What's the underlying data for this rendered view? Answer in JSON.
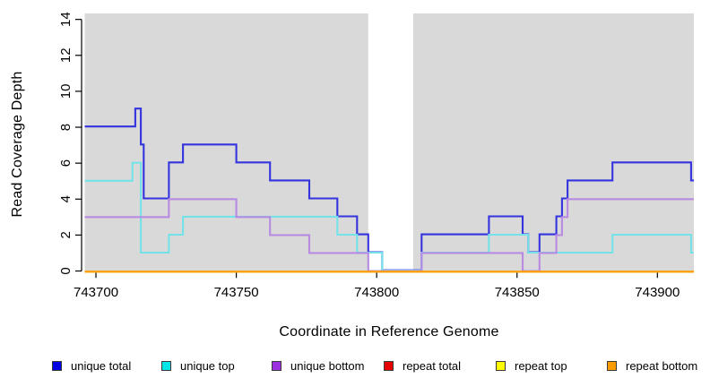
{
  "chart_data": {
    "type": "line",
    "subtype": "step-coverage",
    "title": "",
    "xlabel": "Coordinate in Reference Genome",
    "ylabel": "Read Coverage Depth",
    "xlim": [
      743696,
      743913
    ],
    "ylim": [
      0,
      14
    ],
    "x_ticks": [
      743700,
      743750,
      743800,
      743850,
      743900
    ],
    "y_ticks": [
      0,
      2,
      4,
      6,
      8,
      10,
      12,
      14
    ],
    "grid": false,
    "panel_bg": "#d9d9d9",
    "gap_band": {
      "from": 743797,
      "to": 743813,
      "color": "#ffffff"
    },
    "x_end": 743913,
    "legend_position": "bottom",
    "series": [
      {
        "name": "unique total",
        "line_color": "#3434de",
        "legend_color": "#0000e0",
        "steps": [
          [
            743696,
            8
          ],
          [
            743714,
            9
          ],
          [
            743716,
            7
          ],
          [
            743717,
            4
          ],
          [
            743726,
            6
          ],
          [
            743731,
            7
          ],
          [
            743750,
            6
          ],
          [
            743762,
            5
          ],
          [
            743776,
            4
          ],
          [
            743786,
            3
          ],
          [
            743793,
            2
          ],
          [
            743797,
            1
          ],
          [
            743802,
            0
          ],
          [
            743816,
            2
          ],
          [
            743840,
            3
          ],
          [
            743852,
            2
          ],
          [
            743854,
            1
          ],
          [
            743858,
            2
          ],
          [
            743864,
            3
          ],
          [
            743866,
            4
          ],
          [
            743868,
            5
          ],
          [
            743884,
            6
          ],
          [
            743912,
            5
          ]
        ]
      },
      {
        "name": "unique top",
        "line_color": "#74e2e8",
        "legend_color": "#00e5e5",
        "steps": [
          [
            743696,
            5
          ],
          [
            743713,
            6
          ],
          [
            743716,
            1
          ],
          [
            743726,
            2
          ],
          [
            743731,
            3
          ],
          [
            743786,
            2
          ],
          [
            743793,
            1
          ],
          [
            743802,
            0
          ],
          [
            743816,
            1
          ],
          [
            743840,
            2
          ],
          [
            743854,
            1
          ],
          [
            743884,
            2
          ],
          [
            743912,
            1
          ]
        ]
      },
      {
        "name": "unique bottom",
        "line_color": "#b88ae2",
        "legend_color": "#9b30e0",
        "steps": [
          [
            743696,
            3
          ],
          [
            743726,
            4
          ],
          [
            743750,
            3
          ],
          [
            743762,
            2
          ],
          [
            743776,
            1
          ],
          [
            743797,
            0
          ],
          [
            743816,
            1
          ],
          [
            743852,
            0
          ],
          [
            743858,
            1
          ],
          [
            743864,
            2
          ],
          [
            743866,
            3
          ],
          [
            743868,
            4
          ]
        ]
      },
      {
        "name": "repeat total",
        "line_color": "#e00000",
        "legend_color": "#e60000",
        "steps": [
          [
            743696,
            0
          ]
        ]
      },
      {
        "name": "repeat top",
        "line_color": "#ffff00",
        "legend_color": "#ffff00",
        "steps": [
          [
            743696,
            0
          ]
        ]
      },
      {
        "name": "repeat bottom",
        "line_color": "#ff9d12",
        "legend_color": "#ff9d00",
        "steps": [
          [
            743696,
            0
          ]
        ]
      }
    ]
  }
}
